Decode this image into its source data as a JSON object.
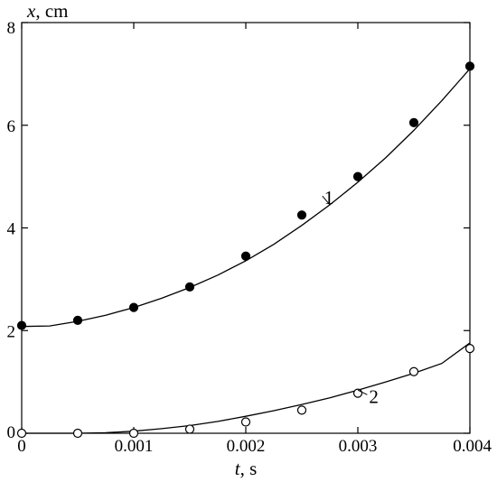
{
  "chart_data": {
    "type": "scatter",
    "title": "",
    "xlabel": {
      "var": "t",
      "unit": ", s"
    },
    "ylabel": {
      "var": "x",
      "unit": ", cm"
    },
    "xlim": [
      0,
      0.004
    ],
    "ylim": [
      0,
      8
    ],
    "x_ticks": [
      0,
      0.001,
      0.002,
      0.003,
      0.004
    ],
    "x_tick_labels": [
      "0",
      "0.001",
      "0.002",
      "0.003",
      "0.004"
    ],
    "y_ticks": [
      0,
      2,
      4,
      6,
      8
    ],
    "y_tick_labels": [
      "0",
      "2",
      "4",
      "6",
      "8"
    ],
    "grid": false,
    "legend": "none",
    "series": [
      {
        "name": "1",
        "marker": "filled-circle",
        "x": [
          0,
          0.0005,
          0.001,
          0.0015,
          0.002,
          0.0025,
          0.003,
          0.0035,
          0.004
        ],
        "y": [
          2.1,
          2.2,
          2.45,
          2.85,
          3.45,
          4.25,
          5.0,
          6.05,
          7.15
        ],
        "fit_x": [
          0,
          0.00025,
          0.0005,
          0.00075,
          0.001,
          0.00125,
          0.0015,
          0.00175,
          0.002,
          0.00225,
          0.0025,
          0.00275,
          0.003,
          0.00325,
          0.0035,
          0.00375,
          0.004
        ],
        "fit_y": [
          2.08,
          2.09,
          2.18,
          2.3,
          2.45,
          2.63,
          2.84,
          3.08,
          3.36,
          3.68,
          4.05,
          4.45,
          4.89,
          5.37,
          5.9,
          6.48,
          7.1
        ]
      },
      {
        "name": "2",
        "marker": "open-circle",
        "x": [
          0,
          0.0005,
          0.001,
          0.0015,
          0.002,
          0.0025,
          0.003,
          0.0035,
          0.004
        ],
        "y": [
          0.0,
          0.0,
          0.0,
          0.08,
          0.22,
          0.45,
          0.78,
          1.2,
          1.65
        ],
        "fit_x": [
          0,
          0.00025,
          0.0005,
          0.00075,
          0.001,
          0.00125,
          0.0015,
          0.00175,
          0.002,
          0.00225,
          0.0025,
          0.00275,
          0.003,
          0.00325,
          0.0035,
          0.00375,
          0.004
        ],
        "fit_y": [
          0.0,
          0.0,
          0.0,
          0.01,
          0.04,
          0.09,
          0.15,
          0.23,
          0.33,
          0.44,
          0.56,
          0.69,
          0.84,
          1.0,
          1.17,
          1.36,
          1.76
        ]
      }
    ],
    "annotations": [
      {
        "text": "1",
        "series": "1",
        "x": 0.0027,
        "y": 4.55
      },
      {
        "text": "2",
        "series": "2",
        "x": 0.0031,
        "y": 0.68
      }
    ]
  }
}
